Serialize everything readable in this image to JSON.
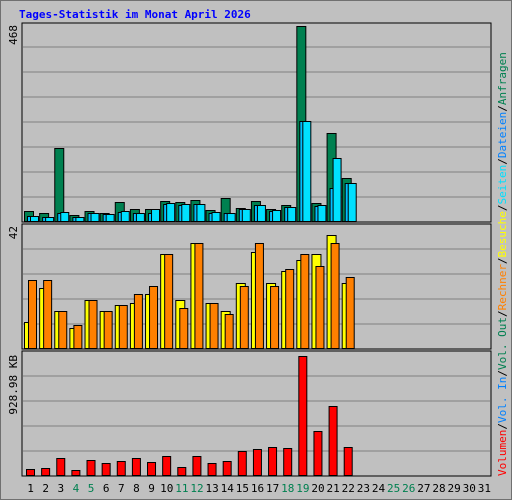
{
  "title": "Tages-Statistik im Monat April 2026",
  "colors": {
    "hits": "#008050",
    "files": "#00c0ff",
    "pages": "#00e0ff",
    "visits": "#ffff00",
    "sites": "#ff8000",
    "kbytes": "#ff0000",
    "weekday_label": "#000000",
    "weekend_label": "#008050"
  },
  "legend": {
    "top": [
      {
        "text": "Anfragen",
        "color": "#008050"
      },
      {
        "text": "/",
        "color": "#000000"
      },
      {
        "text": "Dateien",
        "color": "#0080ff"
      },
      {
        "text": "/",
        "color": "#000000"
      },
      {
        "text": "Seiten",
        "color": "#00e0ff"
      },
      {
        "text": "/",
        "color": "#000000"
      },
      {
        "text": "Besuche",
        "color": "#ffff00"
      },
      {
        "text": "/",
        "color": "#000000"
      },
      {
        "text": "Rechner",
        "color": "#ff8000"
      },
      {
        "text": "/",
        "color": "#000000"
      },
      {
        "text": "Vol. Out",
        "color": "#008050"
      },
      {
        "text": "/",
        "color": "#000000"
      },
      {
        "text": "Vol. In",
        "color": "#0080ff"
      },
      {
        "text": "/",
        "color": "#000000"
      },
      {
        "text": "Volumen",
        "color": "#ff0000"
      }
    ]
  },
  "chart_data": [
    {
      "type": "bar",
      "panel": "hits-files-pages",
      "ylabel_max": "468",
      "ylim": [
        0,
        468
      ],
      "categories": [
        "1",
        "2",
        "3",
        "4",
        "5",
        "6",
        "7",
        "8",
        "9",
        "10",
        "11",
        "12",
        "13",
        "14",
        "15",
        "16",
        "17",
        "18",
        "19",
        "20",
        "21",
        "22",
        "23",
        "24",
        "25",
        "26",
        "27",
        "28",
        "29",
        "30",
        "31"
      ],
      "series": [
        {
          "name": "Anfragen",
          "values": [
            24,
            20,
            175,
            14,
            25,
            20,
            46,
            30,
            30,
            48,
            46,
            50,
            26,
            55,
            32,
            48,
            30,
            38,
            468,
            43,
            210,
            103,
            0,
            0,
            0,
            0,
            0,
            0,
            0,
            0,
            0
          ]
        },
        {
          "name": "Dateien",
          "values": [
            12,
            10,
            20,
            10,
            20,
            16,
            22,
            18,
            18,
            40,
            38,
            40,
            18,
            20,
            28,
            38,
            24,
            34,
            240,
            36,
            80,
            90,
            0,
            0,
            0,
            0,
            0,
            0,
            0,
            0,
            0
          ]
        },
        {
          "name": "Seiten",
          "values": [
            12,
            10,
            22,
            10,
            20,
            16,
            25,
            18,
            28,
            42,
            40,
            40,
            22,
            20,
            30,
            38,
            26,
            34,
            240,
            38,
            150,
            90,
            0,
            0,
            0,
            0,
            0,
            0,
            0,
            0,
            0
          ]
        }
      ]
    },
    {
      "type": "bar",
      "panel": "visits-sites",
      "ylabel_max": "42",
      "ylim": [
        0,
        42
      ],
      "categories": [
        "1",
        "2",
        "3",
        "4",
        "5",
        "6",
        "7",
        "8",
        "9",
        "10",
        "11",
        "12",
        "13",
        "14",
        "15",
        "16",
        "17",
        "18",
        "19",
        "20",
        "21",
        "22",
        "23",
        "24",
        "25",
        "26",
        "27",
        "28",
        "29",
        "30",
        "31"
      ],
      "series": [
        {
          "name": "Besuche",
          "values": [
            9,
            21,
            13,
            7,
            17,
            13,
            15,
            16,
            19,
            33,
            17,
            37,
            16,
            13,
            23,
            34,
            23,
            27,
            31,
            33,
            40,
            23,
            0,
            0,
            0,
            0,
            0,
            0,
            0,
            0,
            0
          ]
        },
        {
          "name": "Rechner",
          "values": [
            24,
            24,
            13,
            8,
            17,
            13,
            15,
            19,
            22,
            33,
            14,
            37,
            16,
            12,
            22,
            37,
            22,
            28,
            33,
            29,
            37,
            25,
            0,
            0,
            0,
            0,
            0,
            0,
            0,
            0,
            0
          ]
        }
      ]
    },
    {
      "type": "bar",
      "panel": "volume",
      "ylabel_max": "928.98 KB",
      "ylim": [
        0,
        928.98
      ],
      "categories": [
        "1",
        "2",
        "3",
        "4",
        "5",
        "6",
        "7",
        "8",
        "9",
        "10",
        "11",
        "12",
        "13",
        "14",
        "15",
        "16",
        "17",
        "18",
        "19",
        "20",
        "21",
        "22",
        "23",
        "24",
        "25",
        "26",
        "27",
        "28",
        "29",
        "30",
        "31"
      ],
      "series": [
        {
          "name": "Volumen",
          "values": [
            45,
            55,
            130,
            40,
            115,
            95,
            110,
            130,
            100,
            150,
            65,
            145,
            95,
            110,
            190,
            200,
            220,
            210,
            928.98,
            340,
            540,
            220,
            0,
            0,
            0,
            0,
            0,
            0,
            0,
            0,
            0
          ]
        }
      ]
    }
  ],
  "days": [
    {
      "label": "1",
      "weekend": false
    },
    {
      "label": "2",
      "weekend": false
    },
    {
      "label": "3",
      "weekend": false
    },
    {
      "label": "4",
      "weekend": true
    },
    {
      "label": "5",
      "weekend": true
    },
    {
      "label": "6",
      "weekend": false
    },
    {
      "label": "7",
      "weekend": false
    },
    {
      "label": "8",
      "weekend": false
    },
    {
      "label": "9",
      "weekend": false
    },
    {
      "label": "10",
      "weekend": false
    },
    {
      "label": "11",
      "weekend": true
    },
    {
      "label": "12",
      "weekend": true
    },
    {
      "label": "13",
      "weekend": false
    },
    {
      "label": "14",
      "weekend": false
    },
    {
      "label": "15",
      "weekend": false
    },
    {
      "label": "16",
      "weekend": false
    },
    {
      "label": "17",
      "weekend": false
    },
    {
      "label": "18",
      "weekend": true
    },
    {
      "label": "19",
      "weekend": true
    },
    {
      "label": "20",
      "weekend": false
    },
    {
      "label": "21",
      "weekend": false
    },
    {
      "label": "22",
      "weekend": false
    },
    {
      "label": "23",
      "weekend": false
    },
    {
      "label": "24",
      "weekend": false
    },
    {
      "label": "25",
      "weekend": true
    },
    {
      "label": "26",
      "weekend": true
    },
    {
      "label": "27",
      "weekend": false
    },
    {
      "label": "28",
      "weekend": false
    },
    {
      "label": "29",
      "weekend": false
    },
    {
      "label": "30",
      "weekend": false
    },
    {
      "label": "31",
      "weekend": false
    }
  ]
}
